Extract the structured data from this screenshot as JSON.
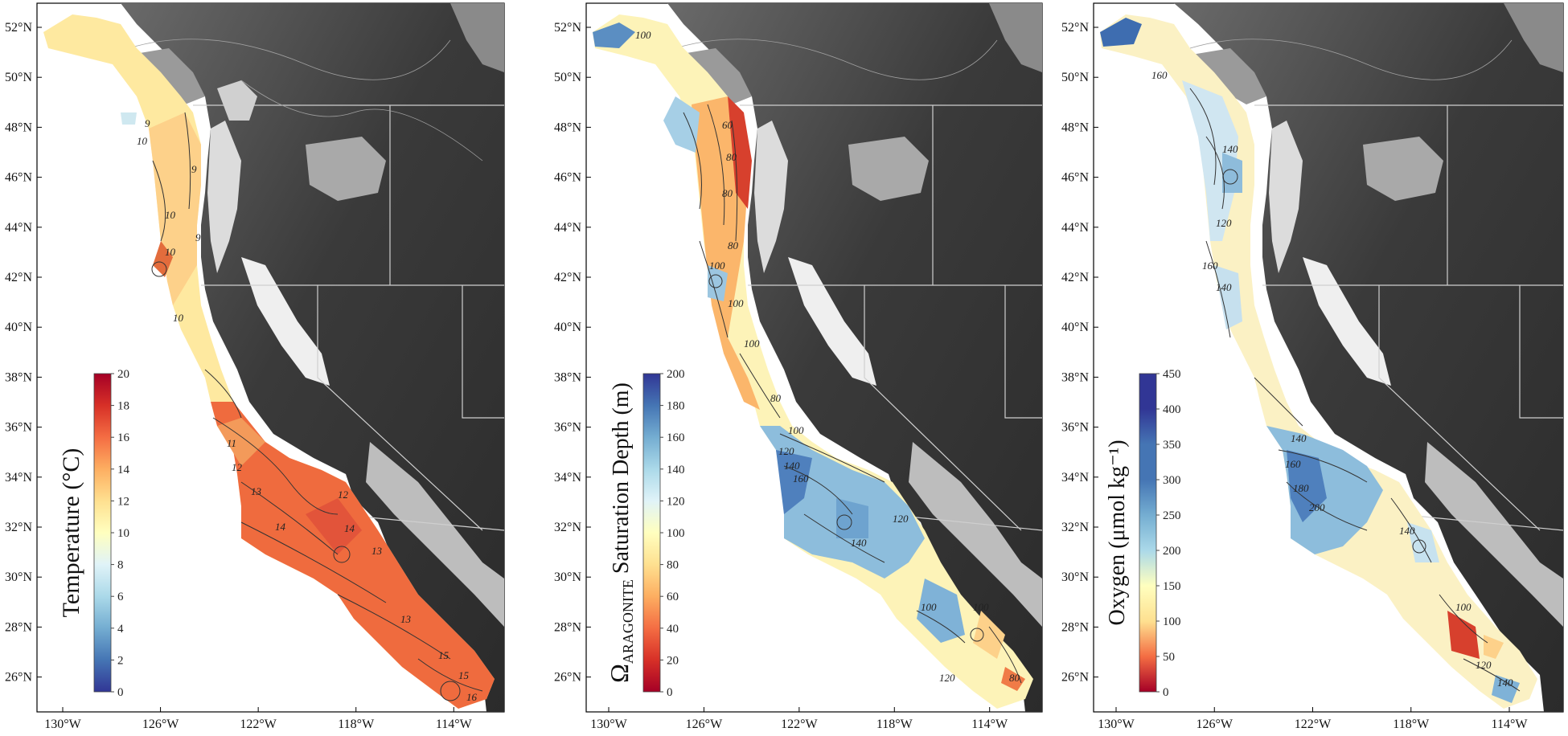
{
  "figure": {
    "panels": [
      {
        "id": "temperature",
        "colorbar": {
          "label": "Temperature (°C)",
          "ticks": [
            "0",
            "2",
            "4",
            "6",
            "8",
            "10",
            "12",
            "14",
            "16",
            "18",
            "20"
          ],
          "scale": "blue-white-red",
          "colors": [
            "#313695",
            "#4575b4",
            "#74add1",
            "#abd9e9",
            "#e0f3f8",
            "#ffffbf",
            "#fee090",
            "#fdae61",
            "#f46d43",
            "#d73027",
            "#a50026"
          ]
        },
        "contour_labels": [
          "9",
          "10",
          "10",
          "9",
          "9",
          "10",
          "10",
          "11",
          "12",
          "13",
          "12",
          "14",
          "14",
          "13",
          "13",
          "15",
          "15",
          "16"
        ]
      },
      {
        "id": "aragonite",
        "colorbar": {
          "label_prefix": "Ω",
          "label_sub": "ARAGONITE",
          "label_suffix": " Saturation Depth (m)",
          "ticks": [
            "0",
            "20",
            "40",
            "60",
            "80",
            "100",
            "120",
            "140",
            "160",
            "180",
            "200"
          ],
          "scale": "red-white-blue",
          "colors": [
            "#a50026",
            "#d73027",
            "#f46d43",
            "#fdae61",
            "#fee090",
            "#ffffbf",
            "#e0f3f8",
            "#abd9e9",
            "#74add1",
            "#4575b4",
            "#313695"
          ]
        },
        "contour_labels": [
          "100",
          "60",
          "80",
          "80",
          "100",
          "80",
          "100",
          "100",
          "80",
          "100",
          "120",
          "140",
          "160",
          "140",
          "120",
          "100",
          "120",
          "100",
          "80"
        ]
      },
      {
        "id": "oxygen",
        "colorbar": {
          "label": "Oxygen (μmol kg⁻¹)",
          "ticks": [
            "0",
            "50",
            "100",
            "150",
            "200",
            "250",
            "300",
            "350",
            "400",
            "450"
          ],
          "scale": "red-white-blue",
          "colors": [
            "#a50026",
            "#f46d43",
            "#fee090",
            "#ffffbf",
            "#abd9e9",
            "#74add1",
            "#4575b4",
            "#4575b4",
            "#313695",
            "#313695"
          ]
        },
        "contour_labels": [
          "160",
          "140",
          "120",
          "160",
          "140",
          "140",
          "160",
          "180",
          "200",
          "140",
          "100",
          "120",
          "140"
        ]
      }
    ],
    "axes": {
      "lat_labels": [
        "52°N",
        "50°N",
        "48°N",
        "46°N",
        "44°N",
        "42°N",
        "40°N",
        "38°N",
        "36°N",
        "34°N",
        "32°N",
        "30°N",
        "28°N",
        "26°N"
      ],
      "lon_labels": [
        "130°W",
        "126°W",
        "122°W",
        "118°W",
        "114°W"
      ]
    },
    "colors": {
      "land_dark": "#2e2e2e",
      "land_mid": "#555555",
      "land_light": "#bcbcbc",
      "coast_highlands": "#e6e6e6",
      "boundary": "#cfcfcf"
    }
  }
}
